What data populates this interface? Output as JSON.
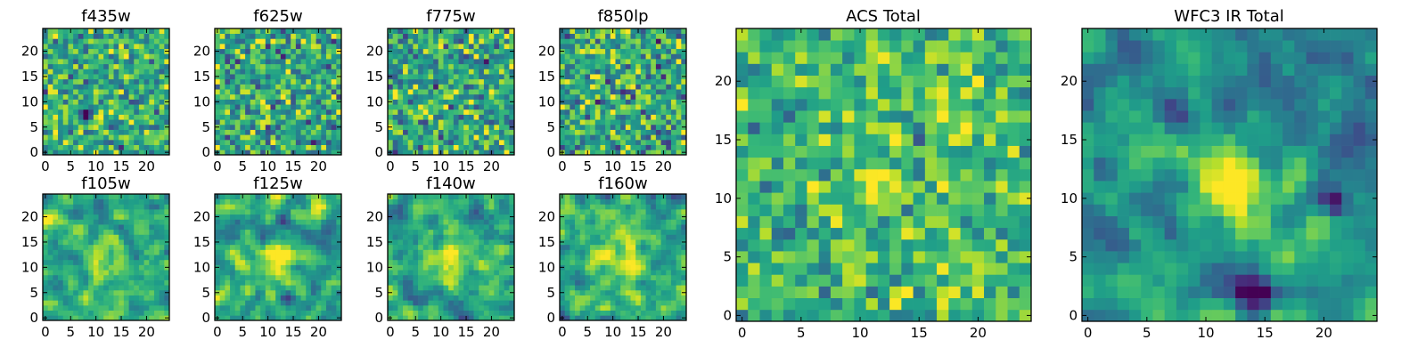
{
  "figure": {
    "description_hidden": false
  },
  "chart_data": [
    {
      "type": "heatmap",
      "title": "f435w",
      "xticks": [
        0,
        5,
        10,
        15,
        20
      ],
      "yticks": [
        0,
        5,
        10,
        15,
        20
      ],
      "xlim": [
        0,
        25
      ],
      "ylim": [
        0,
        25
      ],
      "grid_size": 25,
      "colormap": "viridis",
      "seed": 11,
      "smooth": 0,
      "mean": 0.62,
      "spread": 0.55,
      "features": [
        {
          "x": 8,
          "y": 7.5,
          "amp": -0.9,
          "sigma": 0.8
        }
      ]
    },
    {
      "type": "heatmap",
      "title": "f625w",
      "xticks": [
        0,
        5,
        10,
        15,
        20
      ],
      "yticks": [
        0,
        5,
        10,
        15,
        20
      ],
      "xlim": [
        0,
        25
      ],
      "ylim": [
        0,
        25
      ],
      "grid_size": 25,
      "colormap": "viridis",
      "seed": 23,
      "smooth": 0,
      "mean": 0.6,
      "spread": 0.6,
      "features": []
    },
    {
      "type": "heatmap",
      "title": "f775w",
      "xticks": [
        0,
        5,
        10,
        15,
        20
      ],
      "yticks": [
        0,
        5,
        10,
        15,
        20
      ],
      "xlim": [
        0,
        25
      ],
      "ylim": [
        0,
        25
      ],
      "grid_size": 25,
      "colormap": "viridis",
      "seed": 37,
      "smooth": 0,
      "mean": 0.6,
      "spread": 0.6,
      "features": []
    },
    {
      "type": "heatmap",
      "title": "f850lp",
      "xticks": [
        0,
        5,
        10,
        15,
        20
      ],
      "yticks": [
        0,
        5,
        10,
        15,
        20
      ],
      "xlim": [
        0,
        25
      ],
      "ylim": [
        0,
        25
      ],
      "grid_size": 25,
      "colormap": "viridis",
      "seed": 41,
      "smooth": 0,
      "mean": 0.6,
      "spread": 0.6,
      "features": []
    },
    {
      "type": "heatmap",
      "title": "ACS Total",
      "xticks": [
        0,
        5,
        10,
        15,
        20
      ],
      "yticks": [
        0,
        5,
        10,
        15,
        20
      ],
      "xlim": [
        0,
        25
      ],
      "ylim": [
        0,
        25
      ],
      "grid_size": 25,
      "colormap": "viridis",
      "seed": 53,
      "smooth": 0,
      "mean": 0.68,
      "spread": 0.45,
      "features": [
        {
          "x": 12,
          "y": 11.5,
          "amp": 0.4,
          "sigma": 1.2
        }
      ]
    },
    {
      "type": "heatmap",
      "title": "f105w",
      "xticks": [
        0,
        5,
        10,
        15,
        20
      ],
      "yticks": [
        0,
        5,
        10,
        15,
        20
      ],
      "xlim": [
        0,
        25
      ],
      "ylim": [
        0,
        25
      ],
      "grid_size": 25,
      "colormap": "viridis",
      "seed": 61,
      "smooth": 1,
      "mean": 0.6,
      "spread": 0.55,
      "features": [
        {
          "x": 12,
          "y": 11,
          "amp": 0.25,
          "sigma": 3
        }
      ]
    },
    {
      "type": "heatmap",
      "title": "f125w",
      "xticks": [
        0,
        5,
        10,
        15,
        20
      ],
      "yticks": [
        0,
        5,
        10,
        15,
        20
      ],
      "xlim": [
        0,
        25
      ],
      "ylim": [
        0,
        25
      ],
      "grid_size": 25,
      "colormap": "viridis",
      "seed": 71,
      "smooth": 1,
      "mean": 0.58,
      "spread": 0.6,
      "features": [
        {
          "x": 12,
          "y": 11,
          "amp": 0.4,
          "sigma": 2.5
        }
      ]
    },
    {
      "type": "heatmap",
      "title": "f140w",
      "xticks": [
        0,
        5,
        10,
        15,
        20
      ],
      "yticks": [
        0,
        5,
        10,
        15,
        20
      ],
      "xlim": [
        0,
        25
      ],
      "ylim": [
        0,
        25
      ],
      "grid_size": 25,
      "colormap": "viridis",
      "seed": 83,
      "smooth": 1,
      "mean": 0.6,
      "spread": 0.55,
      "features": [
        {
          "x": 12,
          "y": 12,
          "amp": 0.3,
          "sigma": 3
        }
      ]
    },
    {
      "type": "heatmap",
      "title": "f160w",
      "xticks": [
        0,
        5,
        10,
        15,
        20
      ],
      "yticks": [
        0,
        5,
        10,
        15,
        20
      ],
      "xlim": [
        0,
        25
      ],
      "ylim": [
        0,
        25
      ],
      "grid_size": 25,
      "colormap": "viridis",
      "seed": 97,
      "smooth": 1,
      "mean": 0.6,
      "spread": 0.55,
      "features": [
        {
          "x": 12,
          "y": 11,
          "amp": 0.35,
          "sigma": 3
        }
      ]
    },
    {
      "type": "heatmap",
      "title": "WFC3 IR Total",
      "xticks": [
        0,
        5,
        10,
        15,
        20
      ],
      "yticks": [
        0,
        5,
        10,
        15,
        20
      ],
      "xlim": [
        0,
        25
      ],
      "ylim": [
        0,
        25
      ],
      "grid_size": 25,
      "colormap": "viridis",
      "seed": 103,
      "smooth": 1,
      "mean": 0.5,
      "spread": 0.5,
      "features": [
        {
          "x": 12,
          "y": 11.5,
          "amp": 0.6,
          "sigma": 2.2
        },
        {
          "x": 14,
          "y": 2,
          "amp": -0.6,
          "sigma": 1
        },
        {
          "x": 21,
          "y": 9.5,
          "amp": -0.5,
          "sigma": 0.8
        },
        {
          "x": 1,
          "y": 12.5,
          "amp": -0.4,
          "sigma": 0.9
        }
      ]
    }
  ]
}
